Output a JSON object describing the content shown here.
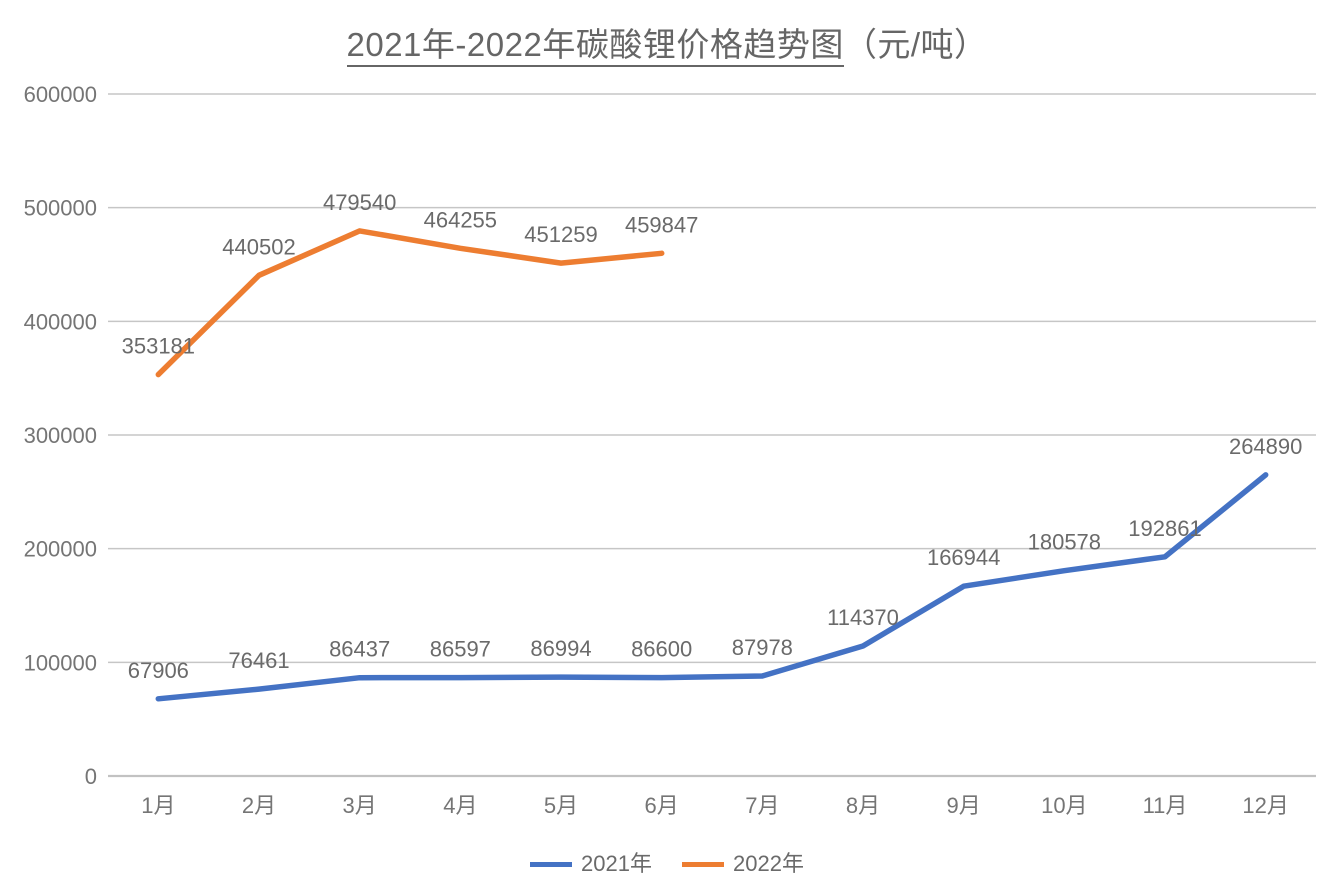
{
  "title": {
    "main": "2021年-2022年碳酸锂价格趋势图",
    "suffix": "（元/吨）",
    "color": "#666666"
  },
  "chart_data": {
    "type": "line",
    "title": "2021年-2022年碳酸锂价格趋势图（元/吨）",
    "categories": [
      "1月",
      "2月",
      "3月",
      "4月",
      "5月",
      "6月",
      "7月",
      "8月",
      "9月",
      "10月",
      "11月",
      "12月"
    ],
    "series": [
      {
        "name": "2021年",
        "color": "#4472C4",
        "values": [
          67906,
          76461,
          86437,
          86597,
          86994,
          86600,
          87978,
          114370,
          166944,
          180578,
          192861,
          264890
        ]
      },
      {
        "name": "2022年",
        "color": "#ED7D31",
        "values": [
          353181,
          440502,
          479540,
          464255,
          451259,
          459847
        ]
      }
    ],
    "ylim": [
      0,
      600000
    ],
    "ytick_interval": 100000,
    "yticks": [
      0,
      100000,
      200000,
      300000,
      400000,
      500000,
      600000
    ],
    "grid": "horizontal",
    "data_labels": true,
    "legend_position": "bottom",
    "label_color": "#6a6a6a",
    "tick_label_color": "#757575",
    "gridline_color": "#c6c6c6",
    "axis_color": "#c2c2c2"
  }
}
